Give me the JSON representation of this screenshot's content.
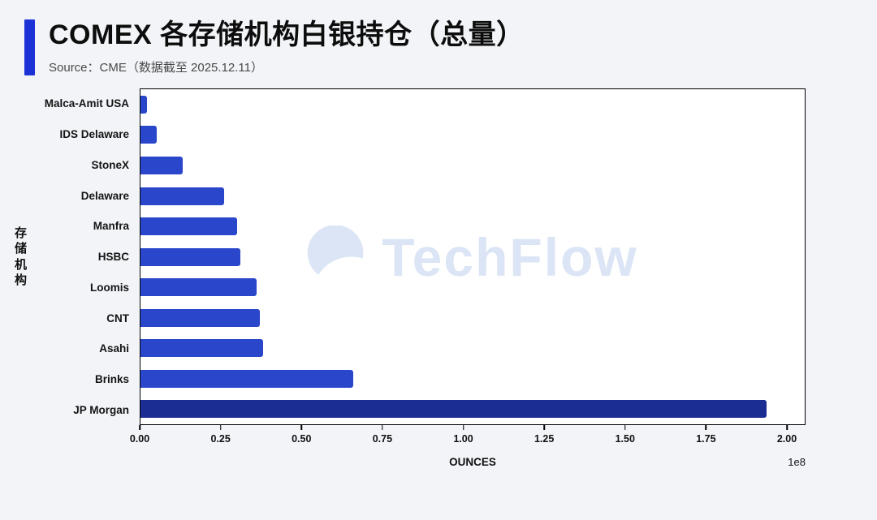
{
  "header": {
    "title": "COMEX 各存储机构白银持仓（总量）",
    "source": "Source：CME（数据截至 2025.12.11）"
  },
  "watermark": {
    "text": "TechFlow"
  },
  "chart_data": {
    "type": "bar",
    "orientation": "horizontal",
    "title": "COMEX 各存储机构白银持仓（总量）",
    "categories": [
      "Malca-Amit USA",
      "IDS Delaware",
      "StoneX",
      "Delaware",
      "Manfra",
      "HSBC",
      "Loomis",
      "CNT",
      "Asahi",
      "Brinks",
      "JP Morgan"
    ],
    "values": [
      0.02,
      0.05,
      0.13,
      0.26,
      0.3,
      0.31,
      0.36,
      0.37,
      0.38,
      0.66,
      1.94
    ],
    "unit": "ounces",
    "value_scale": "1e8",
    "xlabel": "OUNCES",
    "ylabel": "存储机构",
    "xlim": [
      0,
      2.0
    ],
    "x_ticks": [
      "0.00",
      "0.25",
      "0.50",
      "0.75",
      "1.00",
      "1.25",
      "1.50",
      "1.75",
      "2.00"
    ],
    "x_offset_label": "1e8",
    "grid": false,
    "legend": false,
    "bar_colors": {
      "default": "#2a46cb",
      "JP Morgan": "#1b2c93"
    }
  },
  "colors": {
    "accent": "#1c32d6",
    "page_background": "#f2f4f7",
    "plot_background": "#ffffff",
    "watermark": "#dbe5f5"
  }
}
